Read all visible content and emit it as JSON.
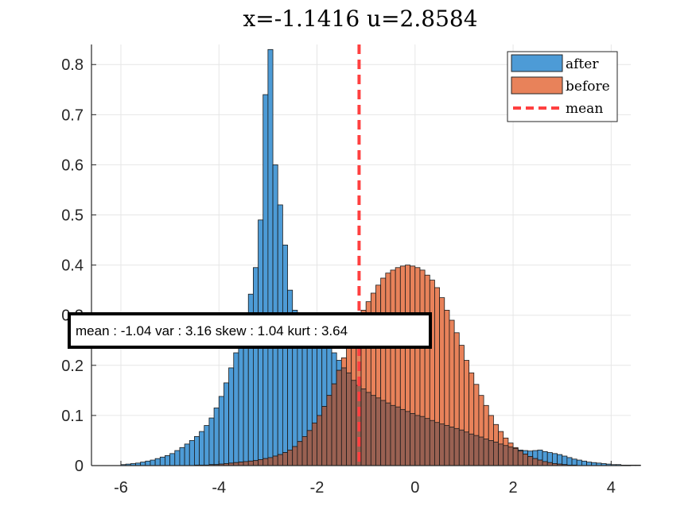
{
  "chart_data": {
    "type": "bar",
    "title": "x=-1.1416 u=2.8584",
    "xlim": [
      -6.6,
      4.4
    ],
    "ylim": [
      0,
      0.84
    ],
    "xticks": [
      -6,
      -4,
      -2,
      0,
      2,
      4
    ],
    "yticks": [
      0,
      0.1,
      0.2,
      0.3,
      0.4,
      0.5,
      0.6,
      0.7,
      0.8
    ],
    "grid": true,
    "bin_width": 0.1,
    "bin_start": -6.0,
    "series": [
      {
        "name": "after",
        "color": "#4d9bd6",
        "values": [
          0.002,
          0.003,
          0.004,
          0.005,
          0.007,
          0.009,
          0.011,
          0.014,
          0.017,
          0.02,
          0.024,
          0.03,
          0.036,
          0.043,
          0.05,
          0.058,
          0.068,
          0.08,
          0.095,
          0.115,
          0.138,
          0.165,
          0.195,
          0.225,
          0.262,
          0.3,
          0.342,
          0.395,
          0.49,
          0.74,
          0.83,
          0.6,
          0.52,
          0.44,
          0.35,
          0.31,
          0.3,
          0.3,
          0.29,
          0.28,
          0.27,
          0.255,
          0.24,
          0.225,
          0.21,
          0.195,
          0.185,
          0.17,
          0.16,
          0.153,
          0.146,
          0.14,
          0.135,
          0.13,
          0.125,
          0.12,
          0.117,
          0.112,
          0.108,
          0.104,
          0.1,
          0.098,
          0.094,
          0.09,
          0.086,
          0.083,
          0.08,
          0.077,
          0.074,
          0.071,
          0.067,
          0.063,
          0.06,
          0.057,
          0.053,
          0.05,
          0.047,
          0.043,
          0.04,
          0.037,
          0.034,
          0.031,
          0.03,
          0.029,
          0.03,
          0.031,
          0.028,
          0.026,
          0.024,
          0.022,
          0.019,
          0.016,
          0.013,
          0.011,
          0.009,
          0.007,
          0.006,
          0.005,
          0.004,
          0.003,
          0.002,
          0.002,
          0.001,
          0.001,
          0.001,
          0.001
        ]
      },
      {
        "name": "before",
        "color": "#e8825a",
        "values": [
          0,
          0,
          0,
          0,
          0,
          0,
          0,
          0,
          0,
          0,
          0,
          0,
          0,
          0,
          0,
          0.001,
          0.001,
          0.001,
          0.002,
          0.002,
          0.003,
          0.004,
          0.005,
          0.006,
          0.007,
          0.008,
          0.009,
          0.01,
          0.012,
          0.014,
          0.016,
          0.019,
          0.022,
          0.026,
          0.031,
          0.038,
          0.048,
          0.058,
          0.07,
          0.085,
          0.1,
          0.118,
          0.14,
          0.163,
          0.19,
          0.215,
          0.244,
          0.262,
          0.286,
          0.31,
          0.327,
          0.344,
          0.36,
          0.374,
          0.384,
          0.39,
          0.395,
          0.398,
          0.4,
          0.398,
          0.395,
          0.39,
          0.38,
          0.37,
          0.355,
          0.335,
          0.31,
          0.29,
          0.265,
          0.24,
          0.21,
          0.185,
          0.162,
          0.14,
          0.12,
          0.1,
          0.082,
          0.068,
          0.055,
          0.045,
          0.036,
          0.029,
          0.023,
          0.018,
          0.014,
          0.011,
          0.008,
          0.006,
          0.004,
          0.003,
          0.002,
          0.001,
          0.001,
          0,
          0,
          0,
          0,
          0,
          0,
          0,
          0,
          0,
          0,
          0,
          0,
          0
        ]
      }
    ],
    "mean_line": {
      "name": "mean",
      "x": -1.1416,
      "color": "#ff4040"
    },
    "legend": {
      "placement": "top-right",
      "entries": [
        "after",
        "before",
        "mean"
      ]
    },
    "annotation": "mean : -1.04 var : 3.16 skew : 1.04 kurt : 3.64"
  }
}
